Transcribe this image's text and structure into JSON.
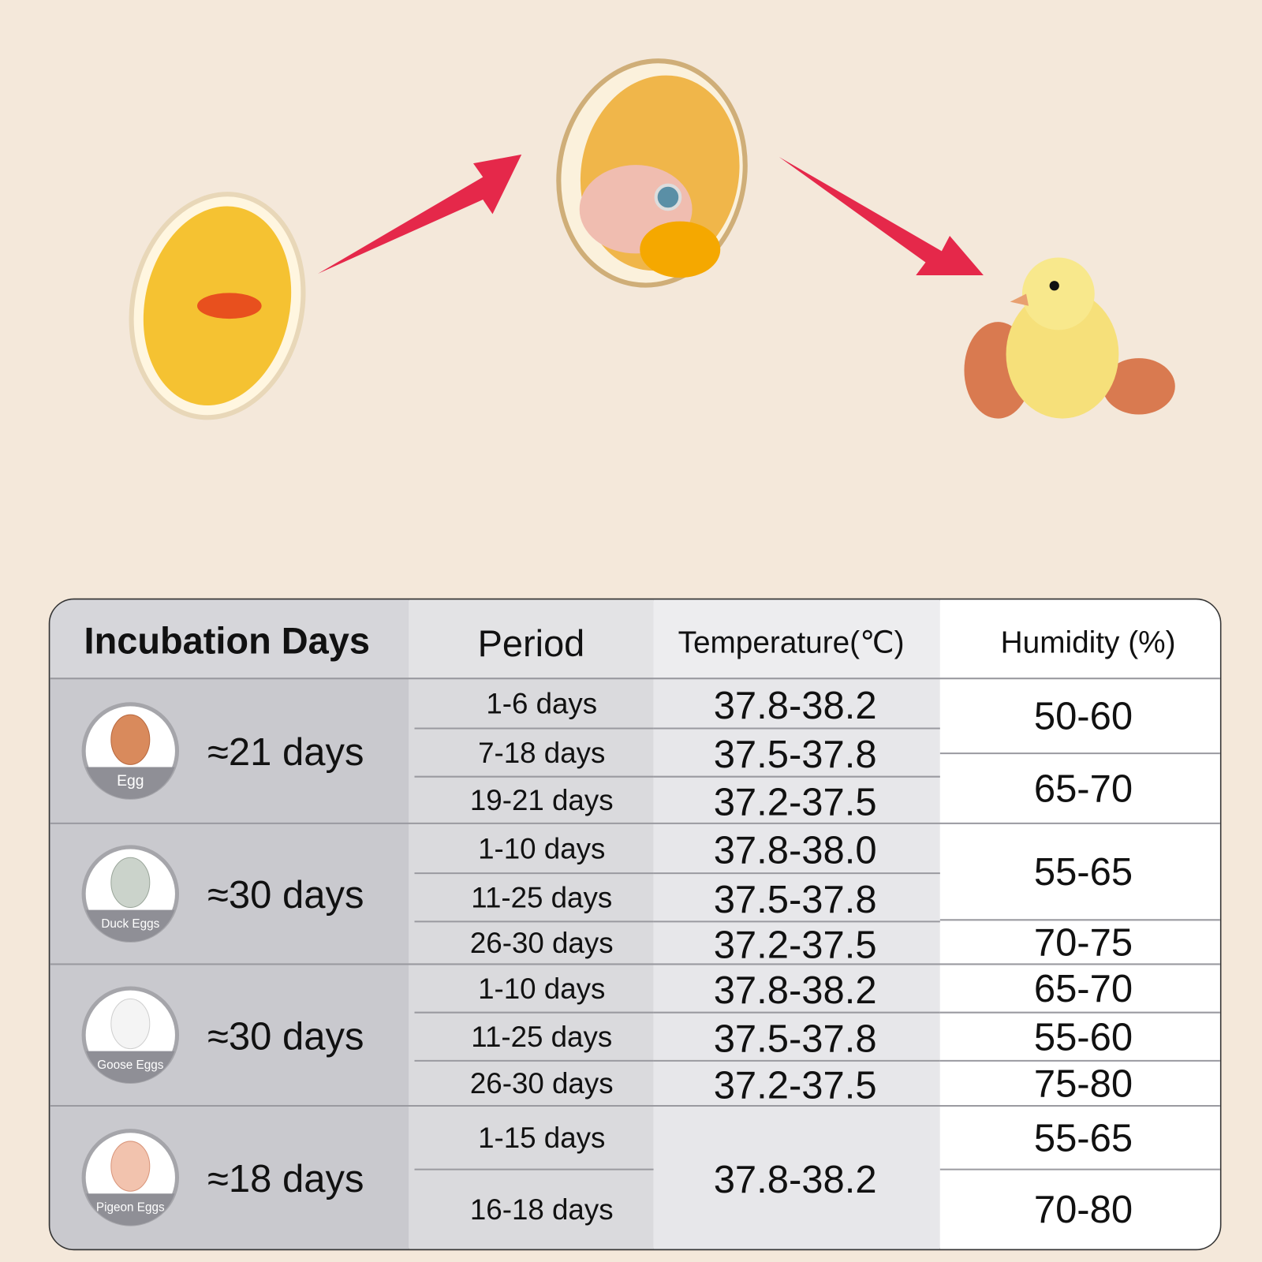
{
  "header": {
    "incubation_days": "Incubation Days",
    "period": "Period",
    "temperature": "Temperature(℃)",
    "humidity": "Humidity (%)"
  },
  "groups": [
    {
      "egg": "Egg",
      "days": "≈21 days",
      "periods": [
        "1-6 days",
        "7-18 days",
        "19-21 days"
      ],
      "temperatures": [
        "37.8-38.2",
        "37.5-37.8",
        "37.2-37.5"
      ],
      "humidity": [
        "50-60",
        "65-70"
      ]
    },
    {
      "egg": "Duck Eggs",
      "days": "≈30 days",
      "periods": [
        "1-10 days",
        "11-25 days",
        "26-30 days"
      ],
      "temperatures": [
        "37.8-38.0",
        "37.5-37.8",
        "37.2-37.5"
      ],
      "humidity": [
        "55-65",
        "70-75"
      ]
    },
    {
      "egg": "Goose Eggs",
      "days": "≈30 days",
      "periods": [
        "1-10 days",
        "11-25 days",
        "26-30 days"
      ],
      "temperatures": [
        "37.8-38.2",
        "37.5-37.8",
        "37.2-37.5"
      ],
      "humidity": [
        "65-70",
        "55-60",
        "75-80"
      ]
    },
    {
      "egg": "Pigeon Eggs",
      "days": "≈18 days",
      "periods": [
        "1-15 days",
        "16-18 days"
      ],
      "temperatures": [
        "37.8-38.2"
      ],
      "humidity": [
        "55-65",
        "70-80"
      ]
    }
  ]
}
